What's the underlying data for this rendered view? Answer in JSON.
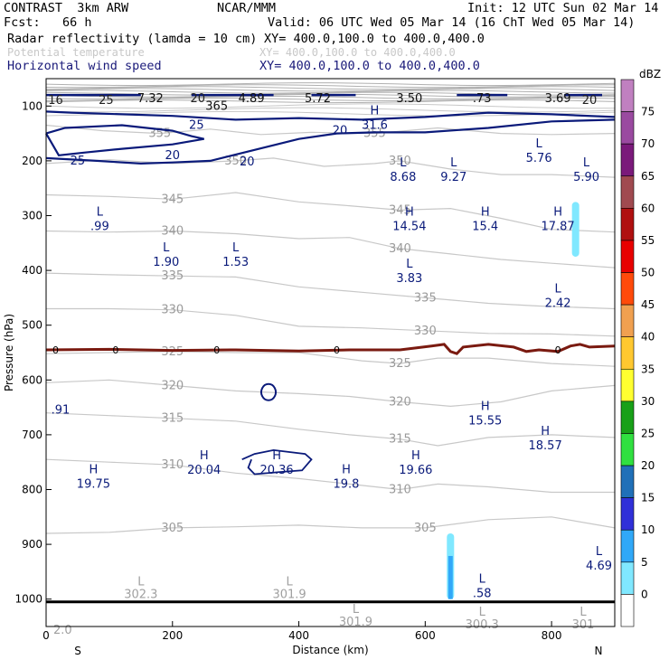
{
  "header": {
    "model": "CONTRAST  3km ARW",
    "org": "NCAR/MMM",
    "init": "Init: 12 UTC Sun 02 Mar 14",
    "fcst": "Fcst:   66 h",
    "valid": "Valid: 06 UTC Wed 05 Mar 14 (16 ChT Wed 05 Mar 14)",
    "fields": [
      {
        "label": "Radar reflectivity (lamda = 10 cm)",
        "xy": "XY= 400.0,100.0 to 400.0,400.0"
      },
      {
        "label": "Potential temperature",
        "xy": "XY= 400.0,100.0 to 400.0,400.0"
      },
      {
        "label": "Horizontal wind speed",
        "xy": "XY= 400.0,100.0 to 400.0,400.0"
      }
    ]
  },
  "chart_data": {
    "type": "cross-section",
    "xlabel": "Distance (km)",
    "ylabel": "Pressure (hPa)",
    "xlim": [
      0,
      900
    ],
    "ylim": [
      1050,
      50
    ],
    "x_ticks": [
      0,
      200,
      400,
      600,
      800
    ],
    "y_ticks": [
      100,
      200,
      300,
      400,
      500,
      600,
      700,
      800,
      900,
      1000
    ],
    "x_end_labels": {
      "left": "S",
      "right": "N"
    },
    "colorbar": {
      "unit": "dBZ",
      "levels": [
        "75",
        "70",
        "65",
        "60",
        "55",
        "50",
        "45",
        "40",
        "35",
        "30",
        "25",
        "20",
        "15",
        "10",
        "5",
        "0"
      ],
      "colors": [
        "#c080c0",
        "#9a4aa0",
        "#7a1a7a",
        "#a04a50",
        "#b01010",
        "#e80000",
        "#ff4a0a",
        "#f0a050",
        "#ffc830",
        "#ffff30",
        "#18a018",
        "#30e040",
        "#2070b8",
        "#3030d8",
        "#30a8f8",
        "#80e8ff",
        "#ffffff"
      ]
    },
    "theta_lines": [
      {
        "value": 355,
        "label": "355"
      },
      {
        "value": 350,
        "label": "350"
      },
      {
        "value": 345,
        "label": "345"
      },
      {
        "value": 340,
        "label": "340"
      },
      {
        "value": 335,
        "label": "335"
      },
      {
        "value": 330,
        "label": "330"
      },
      {
        "value": 325,
        "label": "325"
      },
      {
        "value": 320,
        "label": "320"
      },
      {
        "value": 315,
        "label": "315"
      },
      {
        "value": 310,
        "label": "310"
      },
      {
        "value": 305,
        "label": "305"
      }
    ],
    "top_band_labels": [
      "16",
      "25",
      "7.32",
      "20",
      "4.89",
      "5.72",
      "3.50",
      ".73",
      "3.69",
      "20",
      "365"
    ],
    "wind_contours": [
      {
        "value": "25",
        "label": "25"
      },
      {
        "value": "20",
        "label": "20"
      }
    ],
    "zero_dbz_label": "0",
    "highs_lows": [
      {
        "type": "H",
        "value": "31.6",
        "x": 520,
        "p": 115
      },
      {
        "type": "L",
        "value": "5.76",
        "x": 780,
        "p": 175
      },
      {
        "type": "L",
        "value": "8.68",
        "x": 565,
        "p": 210
      },
      {
        "type": "L",
        "value": "9.27",
        "x": 645,
        "p": 210
      },
      {
        "type": "L",
        "value": "5.90",
        "x": 855,
        "p": 210
      },
      {
        "type": "L",
        "value": ".99",
        "x": 85,
        "p": 300
      },
      {
        "type": "H",
        "value": "14.54",
        "x": 575,
        "p": 300
      },
      {
        "type": "H",
        "value": "15.4",
        "x": 695,
        "p": 300
      },
      {
        "type": "H",
        "value": "17.87",
        "x": 810,
        "p": 300
      },
      {
        "type": "L",
        "value": "1.90",
        "x": 190,
        "p": 365
      },
      {
        "type": "L",
        "value": "1.53",
        "x": 300,
        "p": 365
      },
      {
        "type": "L",
        "value": "3.83",
        "x": 575,
        "p": 395
      },
      {
        "type": "L",
        "value": "2.42",
        "x": 810,
        "p": 440
      },
      {
        "type": "H",
        "value": "15.55",
        "x": 695,
        "p": 655
      },
      {
        "type": "H",
        "value": "18.57",
        "x": 790,
        "p": 700
      },
      {
        "type": "H",
        "value": "20.04",
        "x": 250,
        "p": 745
      },
      {
        "type": "H",
        "value": "20.36",
        "x": 365,
        "p": 745
      },
      {
        "type": "H",
        "value": "19.66",
        "x": 585,
        "p": 745
      },
      {
        "type": "H",
        "value": "19.8",
        "x": 475,
        "p": 770
      },
      {
        "type": "H",
        "value": "19.75",
        "x": 75,
        "p": 770
      },
      {
        "type": "L",
        "value": "4.69",
        "x": 875,
        "p": 920
      },
      {
        "type": "L",
        "value": ".58",
        "x": 690,
        "p": 970
      }
    ],
    "theta_extrema": [
      {
        "type": "L",
        "value": "302.3",
        "x": 150,
        "p": 975
      },
      {
        "type": "L",
        "value": "301.9",
        "x": 385,
        "p": 975
      },
      {
        "type": "L",
        "value": "301.9",
        "x": 490,
        "p": 1025
      },
      {
        "type": "L",
        "value": "300.3",
        "x": 690,
        "p": 1030
      },
      {
        "type": "L",
        "value": "301",
        "x": 850,
        "p": 1030
      },
      {
        "type": "",
        "value": "2.0",
        "x": 0,
        "p": 1040
      }
    ],
    "left_edge_label": ".91",
    "precip_cells": [
      {
        "x": 838,
        "p_top": 275,
        "p_bottom": 375
      },
      {
        "x": 640,
        "p_top": 880,
        "p_bottom": 1000
      }
    ]
  }
}
